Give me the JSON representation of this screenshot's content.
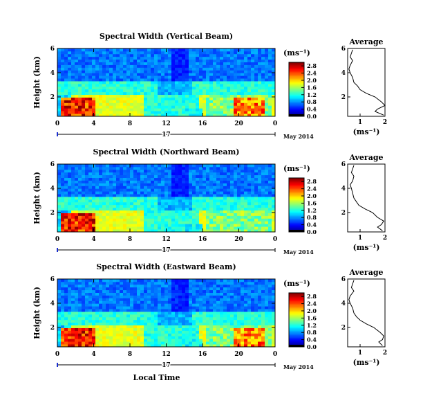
{
  "chart_data": [
    {
      "type": "heatmap",
      "title": "Spectral Width (Vertical Beam)",
      "ylabel": "Height (km)",
      "xticks": [
        "0",
        "4",
        "8",
        "12",
        "16",
        "20",
        "0"
      ],
      "xlim": [
        0,
        24
      ],
      "yticks": [
        "2",
        "4",
        "6"
      ],
      "ylim": [
        0.4,
        6.0
      ],
      "date_label": "17",
      "date_suffix": "May 2014",
      "colorbar": {
        "unit": "(ms⁻¹)",
        "ticks": [
          "0.0",
          "0.4",
          "0.8",
          "1.2",
          "1.6",
          "2.0",
          "2.4",
          "2.8"
        ],
        "range": [
          0,
          3.0
        ]
      },
      "average_profile": {
        "title": "Average",
        "xlabel": "(ms⁻¹)",
        "xticks": [
          "1",
          "2"
        ],
        "xlim": [
          0.5,
          2.0
        ],
        "yticks": [
          "2",
          "4",
          "6"
        ],
        "ylim": [
          0.4,
          6.0
        ],
        "height_km": [
          0.5,
          0.8,
          1.0,
          1.3,
          1.6,
          2.0,
          2.3,
          2.6,
          2.9,
          3.2,
          3.6,
          4.0,
          4.3,
          4.6,
          5.0,
          5.3,
          5.6,
          5.9
        ],
        "width_ms": [
          1.95,
          1.6,
          1.7,
          2.0,
          1.85,
          1.6,
          1.25,
          1.0,
          0.9,
          0.75,
          0.7,
          0.6,
          0.55,
          0.6,
          0.7,
          0.6,
          0.65,
          0.7
        ]
      }
    },
    {
      "type": "heatmap",
      "title": "Spectral Width (Northward Beam)",
      "ylabel": "Height (km)",
      "xticks": [
        "0",
        "4",
        "8",
        "12",
        "16",
        "20",
        "0"
      ],
      "xlim": [
        0,
        24
      ],
      "yticks": [
        "2",
        "4",
        "6"
      ],
      "ylim": [
        0.4,
        6.0
      ],
      "date_label": "17",
      "date_suffix": "May 2014",
      "colorbar": {
        "unit": "(ms⁻¹)",
        "ticks": [
          "0.0",
          "0.4",
          "0.8",
          "1.2",
          "1.6",
          "2.0",
          "2.4",
          "2.8"
        ],
        "range": [
          0,
          3.0
        ]
      },
      "average_profile": {
        "title": "Average",
        "xlabel": "(ms⁻¹)",
        "xticks": [
          "1",
          "2"
        ],
        "xlim": [
          0.5,
          2.0
        ],
        "yticks": [
          "2",
          "4",
          "6"
        ],
        "ylim": [
          0.4,
          6.0
        ],
        "height_km": [
          0.5,
          0.8,
          1.0,
          1.3,
          1.6,
          2.0,
          2.3,
          2.6,
          2.9,
          3.2,
          3.6,
          4.0,
          4.3,
          4.6,
          5.0,
          5.3,
          5.6,
          5.9
        ],
        "width_ms": [
          1.9,
          1.7,
          1.85,
          1.95,
          1.7,
          1.5,
          1.2,
          0.95,
          0.85,
          0.75,
          0.7,
          0.65,
          0.6,
          0.7,
          0.75,
          0.65,
          0.7,
          0.75
        ]
      }
    },
    {
      "type": "heatmap",
      "title": "Spectral Width (Eastward Beam)",
      "ylabel": "Height (km)",
      "xlabel": "Local Time",
      "xticks": [
        "0",
        "4",
        "8",
        "12",
        "16",
        "20",
        "0"
      ],
      "xlim": [
        0,
        24
      ],
      "yticks": [
        "2",
        "4",
        "6"
      ],
      "ylim": [
        0.4,
        6.0
      ],
      "date_label": "17",
      "date_suffix": "May 2014",
      "colorbar": {
        "unit": "(ms⁻¹)",
        "ticks": [
          "0.0",
          "0.4",
          "0.8",
          "1.2",
          "1.6",
          "2.0",
          "2.4",
          "2.8"
        ],
        "range": [
          0,
          3.0
        ]
      },
      "average_profile": {
        "title": "Average",
        "xlabel": "(ms⁻¹)",
        "xticks": [
          "1",
          "2"
        ],
        "xlim": [
          0.5,
          2.0
        ],
        "yticks": [
          "2",
          "4",
          "6"
        ],
        "ylim": [
          0.4,
          6.0
        ],
        "height_km": [
          0.5,
          0.8,
          1.0,
          1.3,
          1.6,
          2.0,
          2.3,
          2.6,
          2.9,
          3.2,
          3.6,
          4.0,
          4.3,
          4.6,
          5.0,
          5.3,
          5.6,
          5.9
        ],
        "width_ms": [
          1.9,
          1.75,
          1.9,
          1.95,
          1.8,
          1.55,
          1.25,
          1.0,
          0.85,
          0.75,
          0.7,
          0.6,
          0.55,
          0.6,
          0.75,
          0.65,
          0.7,
          0.75
        ]
      }
    }
  ]
}
